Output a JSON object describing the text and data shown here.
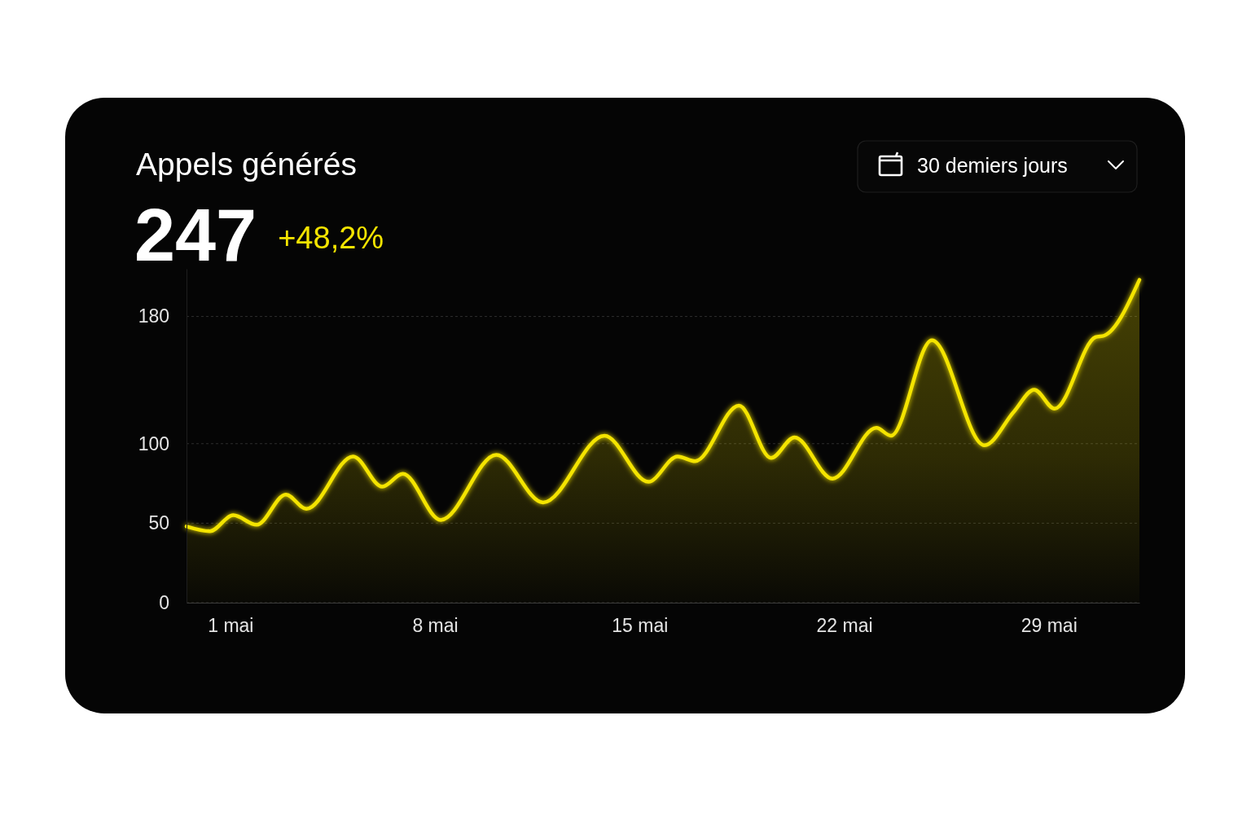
{
  "chart_data": {
    "type": "area",
    "title": "Appels générés",
    "annotations": [
      "247",
      "+48,2%",
      "30 demiers jours"
    ],
    "x": [
      -0.5,
      0.3,
      1.1,
      1.9,
      2.9,
      3.6,
      5.2,
      6.2,
      6.9,
      8.2,
      10.1,
      11.7,
      13.8,
      15.3,
      16.3,
      16.9,
      18.4,
      19.5,
      20.3,
      21.6,
      23.1,
      23.6,
      25.0,
      26.8,
      27.8,
      28.5,
      29.2,
      30.6,
      30.9,
      32.1
    ],
    "values": [
      48,
      45,
      55,
      49,
      68,
      59,
      92,
      73,
      81,
      52,
      93,
      63,
      105,
      76,
      92,
      89,
      124,
      91,
      104,
      78,
      110,
      105,
      165,
      99,
      120,
      134,
      122,
      167,
      168,
      203
    ],
    "color": "#f4e400",
    "xlim": [
      -0.5,
      32.1
    ],
    "xticks": [
      {
        "value": 1,
        "label": "1 mai"
      },
      {
        "value": 8,
        "label": "8 mai"
      },
      {
        "value": 15,
        "label": "15 mai"
      },
      {
        "value": 22,
        "label": "22 mai"
      },
      {
        "value": 29,
        "label": "29 mai"
      }
    ],
    "ylim": [
      0,
      210
    ],
    "yticks": [
      0,
      50,
      100,
      180
    ],
    "grid": "y"
  }
}
